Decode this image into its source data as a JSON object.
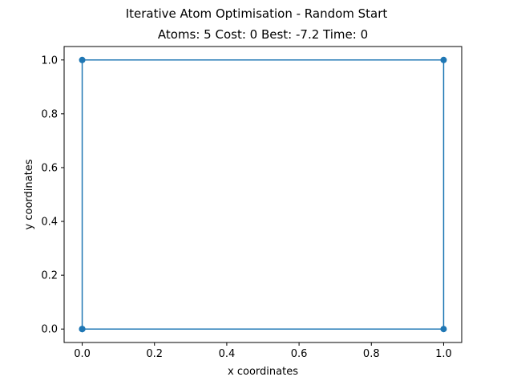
{
  "figure": {
    "suptitle": "Iterative Atom Optimisation - Random Start",
    "title": "Atoms: 5 Cost: 0 Best: -7.2 Time: 0"
  },
  "chart_data": {
    "type": "line",
    "title": "Atoms: 5 Cost: 0 Best: -7.2 Time: 0",
    "suptitle": "Iterative Atom Optimisation - Random Start",
    "xlabel": "x coordinates",
    "ylabel": "y coordinates",
    "xlim": [
      -0.05,
      1.05
    ],
    "ylim": [
      -0.05,
      1.05
    ],
    "xticks": [
      0.0,
      0.2,
      0.4,
      0.6,
      0.8,
      1.0
    ],
    "xtick_labels": [
      "0.0",
      "0.2",
      "0.4",
      "0.6",
      "0.8",
      "1.0"
    ],
    "yticks": [
      0.0,
      0.2,
      0.4,
      0.6,
      0.8,
      1.0
    ],
    "ytick_labels": [
      "0.0",
      "0.2",
      "0.4",
      "0.6",
      "0.8",
      "1.0"
    ],
    "grid": false,
    "series": [
      {
        "color": "#1f77b4",
        "marker": "circle",
        "x": [
          0.0,
          0.0,
          1.0,
          1.0,
          0.0,
          0.0
        ],
        "y": [
          0.0,
          1.0,
          1.0,
          0.0,
          0.0,
          0.0
        ]
      }
    ]
  }
}
